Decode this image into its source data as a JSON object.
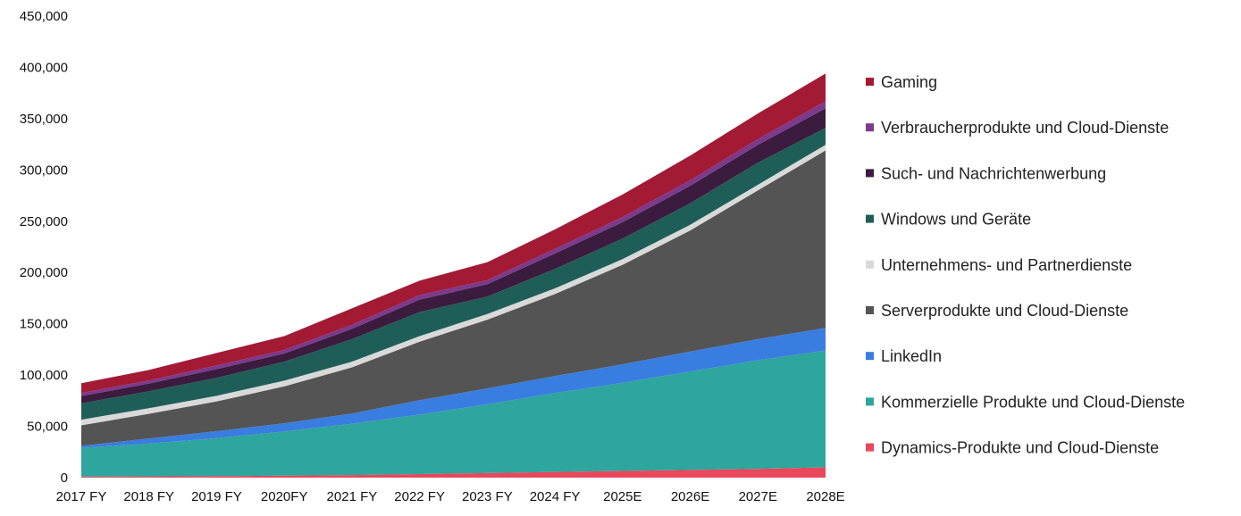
{
  "chart_data": {
    "type": "area",
    "stacked": true,
    "categories": [
      "2017 FY",
      "2018 FY",
      "2019 FY",
      "2020FY",
      "2021 FY",
      "2022 FY",
      "2023 FY",
      "2024 FY",
      "2025E",
      "2026E",
      "2027E",
      "2028E"
    ],
    "ylim": [
      0,
      450000
    ],
    "yticks": [
      "0",
      "50,000",
      "100,000",
      "150,000",
      "200,000",
      "250,000",
      "300,000",
      "350,000",
      "400,000",
      "450,000"
    ],
    "grid": false,
    "legend_position": "right",
    "series": [
      {
        "name": "Dynamics-Produkte und Cloud-Dienste",
        "color": "#e8475c",
        "values": [
          1000,
          1200,
          1500,
          2000,
          2500,
          3500,
          4500,
          5500,
          6500,
          7500,
          8500,
          10000
        ]
      },
      {
        "name": "Kommerzielle Produkte und Cloud-Dienste",
        "color": "#2ea59d",
        "values": [
          28000,
          32000,
          37000,
          43000,
          50000,
          58000,
          67000,
          77000,
          86000,
          96000,
          106000,
          114000
        ]
      },
      {
        "name": "LinkedIn",
        "color": "#3a7de0",
        "values": [
          2000,
          5000,
          6800,
          8000,
          10000,
          14000,
          15500,
          16500,
          18000,
          19500,
          20500,
          22000
        ]
      },
      {
        "name": "Serverprodukte und Cloud-Dienste",
        "color": "#545454",
        "values": [
          20000,
          24000,
          29000,
          36000,
          45000,
          57000,
          67000,
          80000,
          97000,
          118000,
          145000,
          173000
        ]
      },
      {
        "name": "Unternehmens- und Partnerdienste",
        "color": "#d9d9d9",
        "values": [
          5500,
          5500,
          5500,
          5500,
          5500,
          5500,
          5500,
          5500,
          5500,
          5500,
          5500,
          5500
        ]
      },
      {
        "name": "Windows und Geräte",
        "color": "#1f5e58",
        "values": [
          16000,
          16500,
          17500,
          18500,
          22000,
          23500,
          17000,
          19000,
          20000,
          21000,
          21500,
          16500
        ]
      },
      {
        "name": "Such- und Nachrichtenwerbung",
        "color": "#3b1b3e",
        "values": [
          7000,
          7500,
          8500,
          8000,
          10000,
          12000,
          12000,
          15000,
          16000,
          17000,
          17500,
          19000
        ]
      },
      {
        "name": "Verbraucherprodukte und Cloud-Dienste",
        "color": "#7b3a8c",
        "values": [
          3000,
          3000,
          3500,
          3500,
          4000,
          4500,
          4000,
          4500,
          5000,
          5500,
          5500,
          7000
        ]
      },
      {
        "name": "Gaming",
        "color": "#a31a35",
        "values": [
          9500,
          10300,
          12200,
          13500,
          16000,
          14000,
          17500,
          19000,
          22000,
          24000,
          25000,
          27000
        ]
      }
    ]
  }
}
